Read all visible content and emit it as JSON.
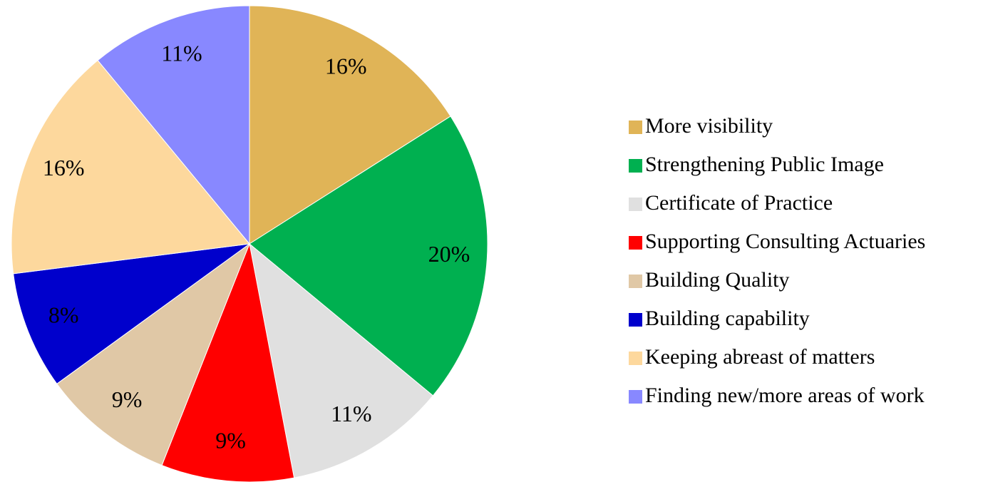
{
  "chart_data": {
    "type": "pie",
    "categories": [
      "More visibility",
      "Strengthening Public Image",
      "Certificate of Practice",
      "Supporting Consulting Actuaries",
      "Building Quality",
      "Building capability",
      "Keeping abreast of matters",
      "Finding new/more areas of work"
    ],
    "values": [
      16,
      20,
      11,
      9,
      9,
      8,
      16,
      11
    ],
    "value_labels": [
      "16%",
      "20%",
      "11%",
      "9%",
      "9%",
      "8%",
      "16%",
      "11%"
    ],
    "colors": [
      "#E0B457",
      "#00B050",
      "#E0E0E0",
      "#FF0000",
      "#E0C8A6",
      "#0000CC",
      "#FDD89D",
      "#8888FF"
    ],
    "legend": "right"
  }
}
